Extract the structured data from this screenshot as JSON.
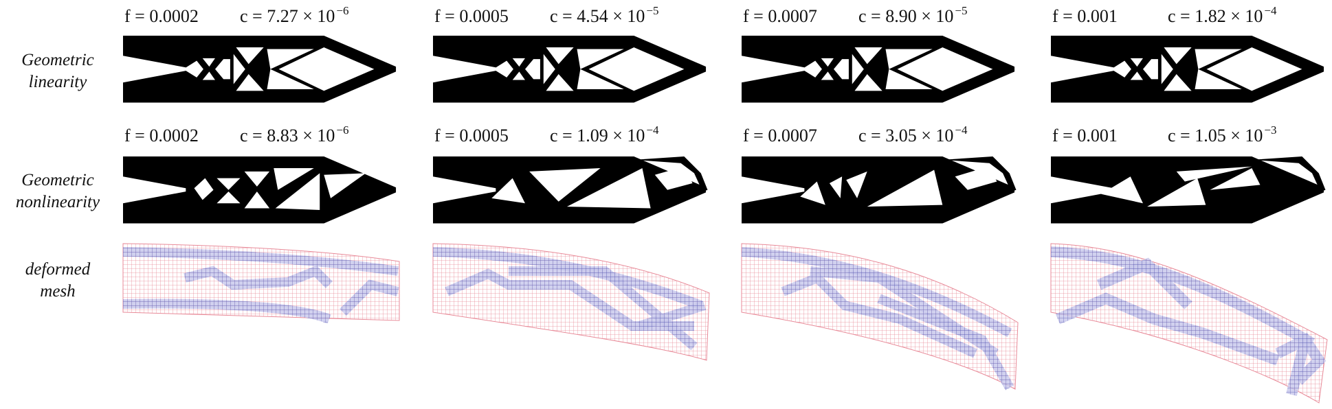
{
  "rows": [
    {
      "label": [
        "Geometric",
        "linearity"
      ],
      "panels": [
        {
          "f": "f = 0.0002",
          "c": "c = 7.27 × 10",
          "exp": "−6"
        },
        {
          "f": "f = 0.0005",
          "c": "c = 4.54 × 10",
          "exp": "−5"
        },
        {
          "f": "f = 0.0007",
          "c": "c = 8.90 × 10",
          "exp": "−5"
        },
        {
          "f": "f = 0.001",
          "c": "c = 1.82 × 10",
          "exp": "−4"
        }
      ]
    },
    {
      "label": [
        "Geometric",
        "nonlinearity"
      ],
      "panels": [
        {
          "f": "f = 0.0002",
          "c": "c = 8.83 × 10",
          "exp": "−6"
        },
        {
          "f": "f = 0.0005",
          "c": "c = 1.09 × 10",
          "exp": "−4"
        },
        {
          "f": "f = 0.0007",
          "c": "c = 3.05 × 10",
          "exp": "−4"
        },
        {
          "f": "f = 0.001",
          "c": "c = 1.05 × 10",
          "exp": "−3"
        }
      ]
    },
    {
      "label": [
        "deformed",
        "mesh"
      ]
    }
  ]
}
